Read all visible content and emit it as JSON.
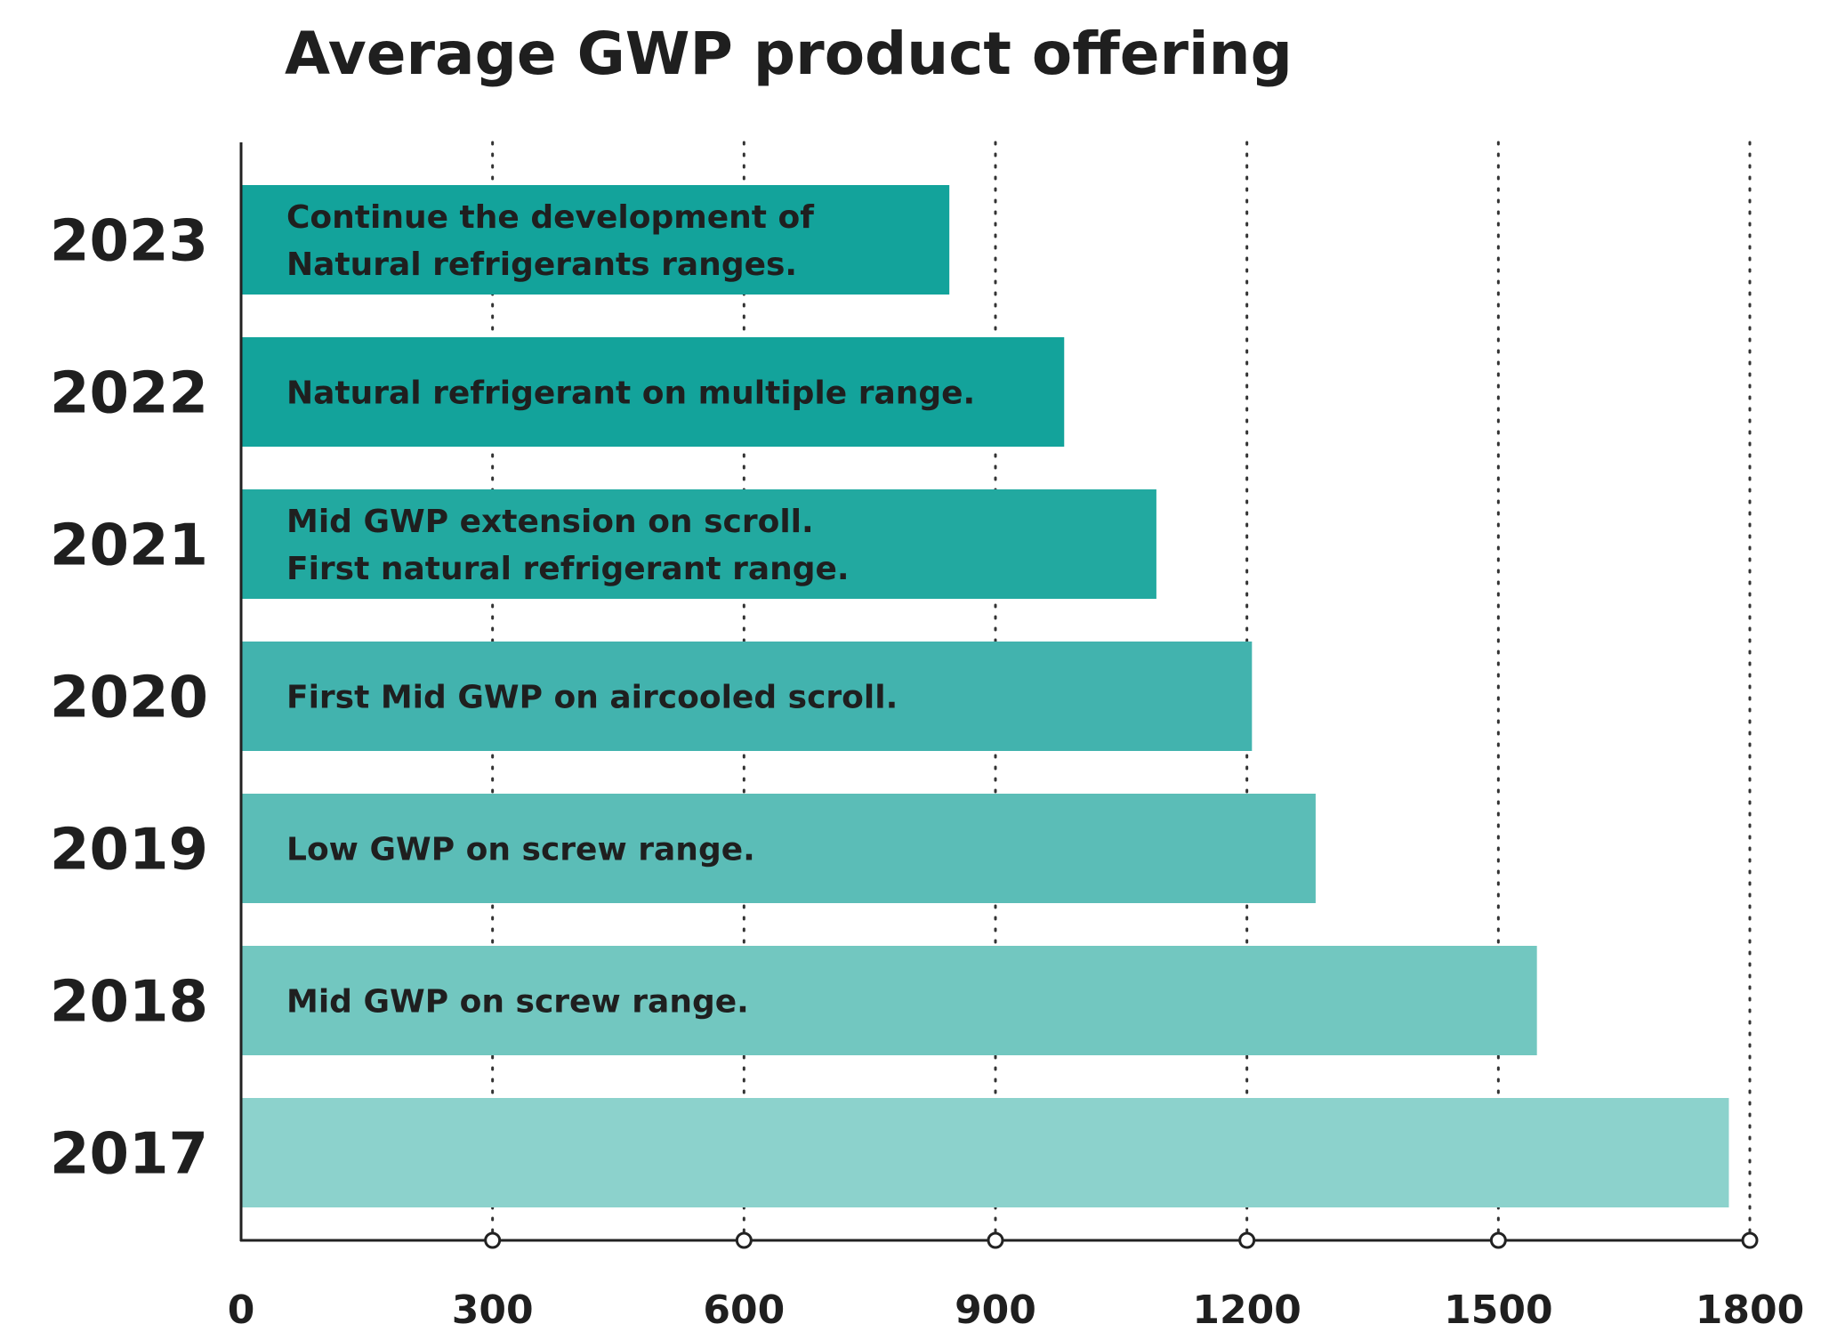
{
  "chart_data": {
    "type": "bar",
    "orientation": "horizontal",
    "title": "Average GWP product offering",
    "xlabel": "",
    "ylabel": "",
    "categories": [
      "2023",
      "2022",
      "2021",
      "2020",
      "2019",
      "2018",
      "2017"
    ],
    "values": [
      845,
      982,
      1092,
      1206,
      1282,
      1546,
      1775
    ],
    "annotations": [
      [
        "Continue the development of",
        "Natural refrigerants ranges."
      ],
      [
        "Natural refrigerant on multiple range."
      ],
      [
        "Mid GWP extension on scroll.",
        "First natural refrigerant range."
      ],
      [
        "First Mid GWP on aircooled scroll."
      ],
      [
        "Low GWP on screw range."
      ],
      [
        "Mid GWP on screw range."
      ],
      []
    ],
    "colors": [
      "#13a39b",
      "#13a39b",
      "#22a9a0",
      "#42b3ae",
      "#5bbdb7",
      "#72c7c0",
      "#8cd2cc"
    ],
    "xlim": [
      0,
      1800
    ],
    "xticks": [
      "0",
      "300",
      "600",
      "900",
      "1200",
      "1500",
      "1800"
    ],
    "grid": "vertical dotted"
  }
}
